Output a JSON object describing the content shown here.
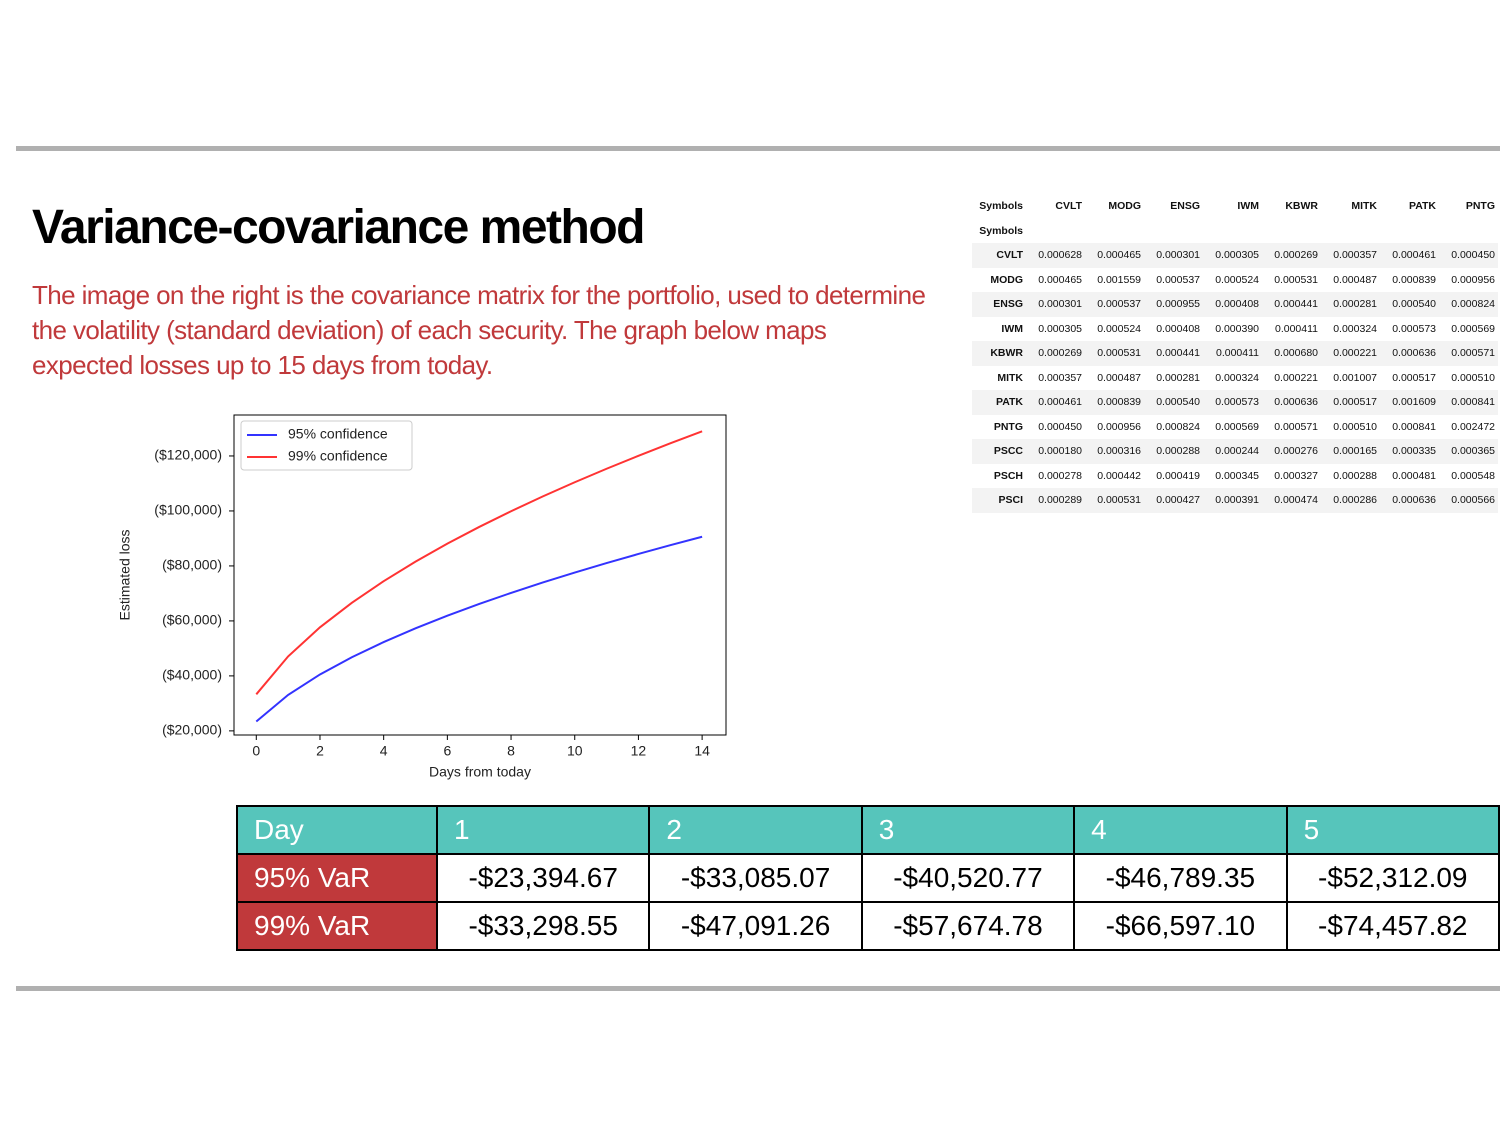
{
  "title": "Variance-covariance method",
  "description": "The image on the right is the covariance matrix for the portfolio, used to determine the volatility (standard deviation) of each security. The graph below maps expected losses up to 15 days from today.",
  "chart_data": {
    "type": "line",
    "x": [
      0,
      1,
      2,
      3,
      4,
      5,
      6,
      7,
      8,
      9,
      10,
      11,
      12,
      13,
      14
    ],
    "series": [
      {
        "name": "95% confidence",
        "color": "#3333ff",
        "values": [
          -23395,
          -33085,
          -40521,
          -46789,
          -52312,
          -57305,
          -61897,
          -66171,
          -70184,
          -73981,
          -77591,
          -81041,
          -84350,
          -87534,
          -90606
        ]
      },
      {
        "name": "99% confidence",
        "color": "#ff3333",
        "values": [
          -33299,
          -47091,
          -57675,
          -66597,
          -74458,
          -81565,
          -88099,
          -94183,
          -99896,
          -105299,
          -110438,
          -115349,
          -120059,
          -124592,
          -128964
        ]
      }
    ],
    "xlabel": "Days from today",
    "ylabel": "Estimated loss",
    "xlim": [
      -0.7,
      14.75
    ],
    "xticks": [
      0,
      2,
      4,
      6,
      8,
      10,
      12,
      14
    ],
    "ylim": [
      -18500,
      -134900
    ],
    "yticks": [
      {
        "value": -20000,
        "label": "($20,000)"
      },
      {
        "value": -40000,
        "label": "($40,000)"
      },
      {
        "value": -60000,
        "label": "($60,000)"
      },
      {
        "value": -80000,
        "label": "($80,000)"
      },
      {
        "value": -100000,
        "label": "($100,000)"
      },
      {
        "value": -120000,
        "label": "($120,000)"
      }
    ],
    "legend": "upper left"
  },
  "covariance": {
    "columns_title": "Symbols",
    "index_title": "Symbols",
    "columns": [
      "CVLT",
      "MODG",
      "ENSG",
      "IWM",
      "KBWR",
      "MITK",
      "PATK",
      "PNTG"
    ],
    "rows": [
      {
        "label": "CVLT",
        "values": [
          "0.000628",
          "0.000465",
          "0.000301",
          "0.000305",
          "0.000269",
          "0.000357",
          "0.000461",
          "0.000450"
        ]
      },
      {
        "label": "MODG",
        "values": [
          "0.000465",
          "0.001559",
          "0.000537",
          "0.000524",
          "0.000531",
          "0.000487",
          "0.000839",
          "0.000956"
        ]
      },
      {
        "label": "ENSG",
        "values": [
          "0.000301",
          "0.000537",
          "0.000955",
          "0.000408",
          "0.000441",
          "0.000281",
          "0.000540",
          "0.000824"
        ]
      },
      {
        "label": "IWM",
        "values": [
          "0.000305",
          "0.000524",
          "0.000408",
          "0.000390",
          "0.000411",
          "0.000324",
          "0.000573",
          "0.000569"
        ]
      },
      {
        "label": "KBWR",
        "values": [
          "0.000269",
          "0.000531",
          "0.000441",
          "0.000411",
          "0.000680",
          "0.000221",
          "0.000636",
          "0.000571"
        ]
      },
      {
        "label": "MITK",
        "values": [
          "0.000357",
          "0.000487",
          "0.000281",
          "0.000324",
          "0.000221",
          "0.001007",
          "0.000517",
          "0.000510"
        ]
      },
      {
        "label": "PATK",
        "values": [
          "0.000461",
          "0.000839",
          "0.000540",
          "0.000573",
          "0.000636",
          "0.000517",
          "0.001609",
          "0.000841"
        ]
      },
      {
        "label": "PNTG",
        "values": [
          "0.000450",
          "0.000956",
          "0.000824",
          "0.000569",
          "0.000571",
          "0.000510",
          "0.000841",
          "0.002472"
        ]
      },
      {
        "label": "PSCC",
        "values": [
          "0.000180",
          "0.000316",
          "0.000288",
          "0.000244",
          "0.000276",
          "0.000165",
          "0.000335",
          "0.000365"
        ]
      },
      {
        "label": "PSCH",
        "values": [
          "0.000278",
          "0.000442",
          "0.000419",
          "0.000345",
          "0.000327",
          "0.000288",
          "0.000481",
          "0.000548"
        ]
      },
      {
        "label": "PSCI",
        "values": [
          "0.000289",
          "0.000531",
          "0.000427",
          "0.000391",
          "0.000474",
          "0.000286",
          "0.000636",
          "0.000566"
        ]
      }
    ]
  },
  "var_table": {
    "header": [
      "Day",
      "1",
      "2",
      "3",
      "4",
      "5"
    ],
    "rows": [
      [
        "95% VaR",
        "-$23,394.67",
        "-$33,085.07",
        "-$40,520.77",
        "-$46,789.35",
        "-$52,312.09"
      ],
      [
        "99% VaR",
        "-$33,298.55",
        "-$47,091.26",
        "-$57,674.78",
        "-$66,597.10",
        "-$74,457.82"
      ]
    ]
  }
}
